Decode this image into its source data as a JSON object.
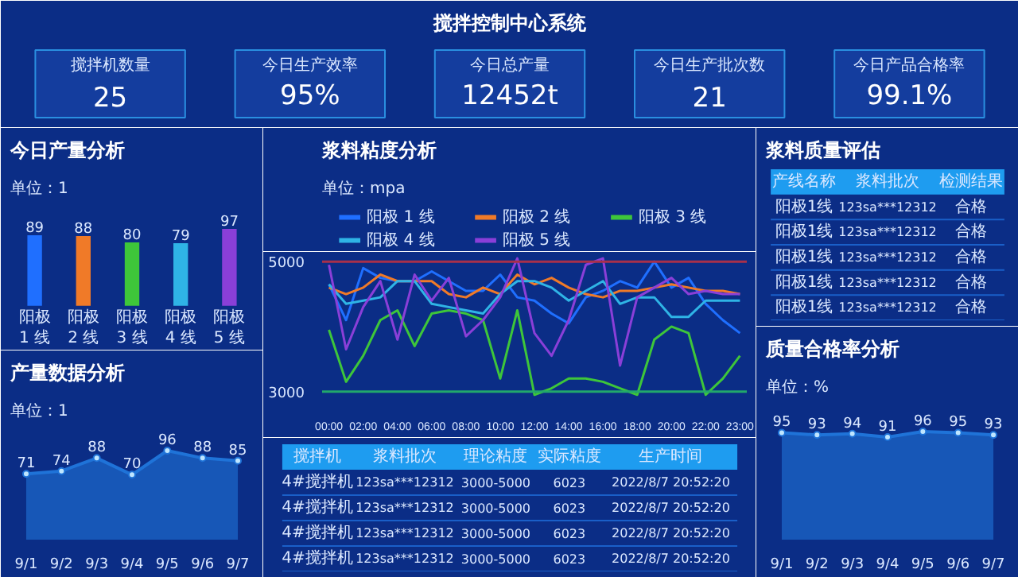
{
  "chart_data": [
    {
      "type": "other",
      "title": "搅拌控制中心系统",
      "categories": [
        "搅拌机数量",
        "今日生产效率",
        "今日总产量",
        "今日生产批次数",
        "今日产品合格率"
      ],
      "value_labels": [
        "25",
        "95%",
        "12452t",
        "21",
        "99.1%"
      ]
    },
    {
      "type": "bar",
      "title": "今日产量分析",
      "subtitle": "单位：1",
      "categories": [
        "阳极 1 线",
        "阳极 2 线",
        "阳极 3 线",
        "阳极 4 线",
        "阳极 5 线"
      ],
      "values": [
        89,
        88,
        80,
        79,
        97
      ],
      "colors": [
        "#1f6fff",
        "#f07a28",
        "#3ec63a",
        "#2fb4e6",
        "#8a3fd8"
      ],
      "data_labels": true
    },
    {
      "type": "line",
      "title": "浆料粘度分析",
      "subtitle": "单位：mpa",
      "categories": [
        "00:00",
        null,
        "02:00",
        null,
        "04:00",
        null,
        "06:00",
        null,
        "08:00",
        null,
        "10:00",
        null,
        "12:00",
        null,
        "14:00",
        null,
        "16:00",
        null,
        "18:00",
        null,
        "20:00",
        null,
        "22:00",
        null,
        "23:00"
      ],
      "series": [
        {
          "name": "阳极 1 线",
          "color": "#1f6fff",
          "values": [
            4650,
            4100,
            4900,
            4750,
            4700,
            4700,
            4850,
            4700,
            4550,
            4550,
            4800,
            4450,
            4400,
            4200,
            4050,
            4450,
            4550,
            4700,
            4600,
            5000,
            4600,
            4750,
            4350,
            4100,
            3900
          ]
        },
        {
          "name": "阳极 2 线",
          "color": "#f07a28",
          "values": [
            4600,
            4500,
            4600,
            4800,
            4700,
            4700,
            4700,
            4500,
            4450,
            4600,
            4500,
            4800,
            4650,
            4750,
            4600,
            4500,
            4450,
            4550,
            4550,
            4600,
            4650,
            4600,
            4550,
            4550,
            4500
          ]
        },
        {
          "name": "阳极 3 线",
          "color": "#3ec63a",
          "values": [
            3950,
            3150,
            3550,
            4100,
            4250,
            3700,
            4200,
            4250,
            4200,
            4100,
            3200,
            4250,
            2950,
            3050,
            3200,
            3200,
            3150,
            3050,
            2950,
            3800,
            4000,
            3900,
            2950,
            3200,
            3550
          ]
        },
        {
          "name": "阳极 4 线",
          "color": "#2fb4e6",
          "values": [
            4650,
            4350,
            4400,
            4450,
            4700,
            4700,
            4350,
            4300,
            4250,
            4200,
            4500,
            4700,
            4700,
            4600,
            4400,
            4550,
            4700,
            4350,
            4450,
            4450,
            4150,
            4150,
            4400,
            4400,
            4400
          ]
        },
        {
          "name": "阳极 5 线",
          "color": "#8a3fd8",
          "values": [
            4950,
            3650,
            4300,
            4700,
            3800,
            4800,
            4400,
            4750,
            3850,
            4100,
            4450,
            5050,
            3900,
            3550,
            4100,
            4950,
            5050,
            3400,
            4450,
            4600,
            4750,
            4500,
            4550,
            4500,
            4500
          ]
        }
      ],
      "ylim": [
        2800,
        5100
      ],
      "yticks": [
        3000,
        5000
      ],
      "ref_lines": [
        {
          "axis": "y",
          "value": 5000,
          "color": "#a8304a"
        },
        {
          "axis": "y",
          "value": 3000,
          "color": "#22a86b"
        }
      ],
      "legend": "top"
    },
    {
      "type": "other",
      "title": "浆料质量评估",
      "categories": [
        "产线名称",
        "浆料批次",
        "检测结果"
      ],
      "cell_labels": [
        [
          "阳极1线",
          "123sa***12312",
          "合格"
        ],
        [
          "阳极1线",
          "123sa***12312",
          "合格"
        ],
        [
          "阳极1线",
          "123sa***12312",
          "合格"
        ],
        [
          "阳极1线",
          "123sa***12312",
          "合格"
        ],
        [
          "阳极1线",
          "123sa***12312",
          "合格"
        ]
      ]
    },
    {
      "type": "area",
      "title": "产量数据分析",
      "subtitle": "单位：1",
      "categories": [
        "9/1",
        "9/2",
        "9/3",
        "9/4",
        "9/5",
        "9/6",
        "9/7"
      ],
      "series": [
        {
          "color": "#1f73d8",
          "values": [
            71,
            74,
            88,
            70,
            96,
            88,
            85
          ]
        }
      ],
      "data_labels": true,
      "marker": "circle",
      "tick_labels": "x"
    },
    {
      "type": "other",
      "categories": [
        "搅拌机",
        "浆料批次",
        "理论粘度",
        "实际粘度",
        "生产时间"
      ],
      "cell_labels": [
        [
          "4#搅拌机",
          "123sa***12312",
          "3000-5000",
          "6023",
          "2022/8/7 20:52:20"
        ],
        [
          "4#搅拌机",
          "123sa***12312",
          "3000-5000",
          "6023",
          "2022/8/7 20:52:20"
        ],
        [
          "4#搅拌机",
          "123sa***12312",
          "3000-5000",
          "6023",
          "2022/8/7 20:52:20"
        ],
        [
          "4#搅拌机",
          "123sa***12312",
          "3000-5000",
          "6023",
          "2022/8/7 20:52:20"
        ]
      ]
    },
    {
      "type": "area",
      "title": "质量合格率分析",
      "subtitle": "单位：%",
      "categories": [
        "9/1",
        "9/2",
        "9/3",
        "9/4",
        "9/5",
        "9/6",
        "9/7"
      ],
      "series": [
        {
          "color": "#1f73d8",
          "values": [
            95,
            93,
            94,
            91,
            96,
            95,
            93
          ]
        }
      ],
      "data_labels": true,
      "marker": "circle",
      "tick_labels": "x"
    }
  ]
}
